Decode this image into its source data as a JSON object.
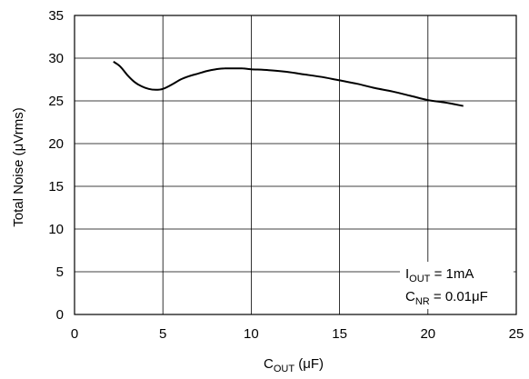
{
  "chart_data": {
    "type": "line",
    "xlim": [
      0,
      25
    ],
    "ylim": [
      0,
      35
    ],
    "xticks": [
      0,
      5,
      10,
      15,
      20,
      25
    ],
    "yticks": [
      0,
      5,
      10,
      15,
      20,
      25,
      30,
      35
    ],
    "grid": true,
    "xlabel": {
      "base": "C",
      "sub": "OUT",
      "unit": " (μF)"
    },
    "ylabel": "Total Noise (μVrms)",
    "annotation": {
      "line1": {
        "base": "I",
        "sub": "OUT",
        "rest": " = 1mA"
      },
      "line2": {
        "base": "C",
        "sub": "NR",
        "rest": " = 0.01μF"
      }
    },
    "series": [
      {
        "x": [
          2.2,
          2.6,
          3.0,
          3.4,
          3.8,
          4.2,
          4.6,
          5.0,
          5.5,
          6.0,
          6.5,
          7.0,
          7.5,
          8.0,
          8.5,
          9.0,
          9.5,
          10.0,
          11.0,
          12.0,
          13.0,
          14.0,
          15.0,
          16.0,
          17.0,
          18.0,
          19.0,
          20.0,
          21.0,
          22.0
        ],
        "y": [
          29.6,
          29.0,
          28.0,
          27.2,
          26.7,
          26.4,
          26.3,
          26.4,
          26.9,
          27.5,
          27.9,
          28.2,
          28.5,
          28.7,
          28.8,
          28.8,
          28.8,
          28.7,
          28.6,
          28.4,
          28.1,
          27.8,
          27.4,
          27.0,
          26.5,
          26.1,
          25.6,
          25.1,
          24.8,
          24.4
        ]
      }
    ]
  }
}
